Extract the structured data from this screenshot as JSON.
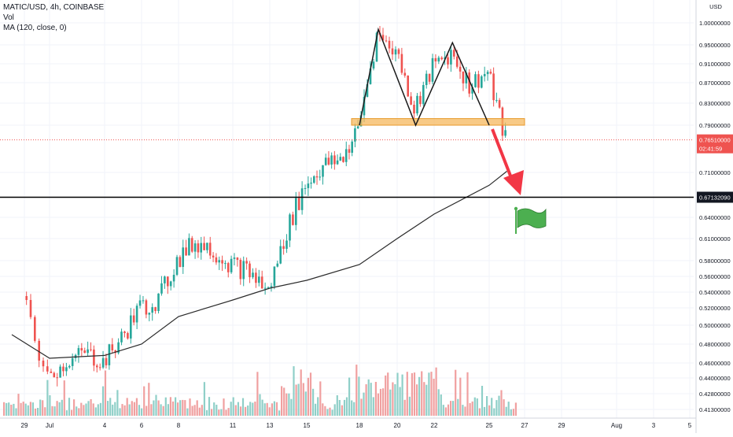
{
  "legend": {
    "symbol_line": "MATIC/USD, 4h, COINBASE",
    "volume_label": "Vol",
    "ma_label": "MA (120, close, 0)"
  },
  "price_axis": {
    "currency": "USD",
    "ticks": [
      "1.00000000",
      "0.95000000",
      "0.91000000",
      "0.87000000",
      "0.83000000",
      "0.79000000",
      "0.71000000",
      "0.64000000",
      "0.61000000",
      "0.58000000",
      "0.56000000",
      "0.54000000",
      "0.52000000",
      "0.50000000",
      "0.48000000",
      "0.46000000",
      "0.44000000",
      "0.42800000",
      "0.41300000"
    ]
  },
  "time_axis": {
    "ticks": [
      "29",
      "Jul",
      "4",
      "6",
      "8",
      "11",
      "13",
      "15",
      "18",
      "20",
      "22",
      "25",
      "27",
      "29",
      "Aug",
      "3",
      "5"
    ]
  },
  "current_price": {
    "label": "0.76510000",
    "countdown": "02:41:59",
    "value": 0.7651
  },
  "support_line": {
    "label": "0.67132090",
    "value": 0.6713209
  },
  "colors": {
    "up": "#26a69a",
    "down": "#ef5350",
    "vol_up": "#8fcfc8",
    "vol_down": "#f0a0a0",
    "ma": "#2b2b2b",
    "zone": "#f6b85e",
    "arrow": "#f23645",
    "flag": "#4caf50",
    "axis_text": "#131722",
    "grid": "#f0f3fa"
  },
  "chart_data": {
    "type": "candlestick",
    "symbol": "MATIC/USD",
    "interval": "4h",
    "exchange": "COINBASE",
    "y_axis": {
      "scale": "log",
      "range": [
        0.41,
        1.02
      ],
      "currency": "USD"
    },
    "grid": true,
    "series": [
      {
        "name": "MATIC/USD",
        "kind": "candles",
        "close_path": [
          {
            "date": "Jun 29",
            "value": 0.535
          },
          {
            "date": "Jul 1",
            "value": 0.44
          },
          {
            "date": "Jul 2",
            "value": 0.46
          },
          {
            "date": "Jul 3",
            "value": 0.47
          },
          {
            "date": "Jul 4",
            "value": 0.46
          },
          {
            "date": "Jul 5",
            "value": 0.485
          },
          {
            "date": "Jul 6",
            "value": 0.52
          },
          {
            "date": "Jul 7",
            "value": 0.53
          },
          {
            "date": "Jul 8",
            "value": 0.58
          },
          {
            "date": "Jul 9",
            "value": 0.605
          },
          {
            "date": "Jul 10",
            "value": 0.595
          },
          {
            "date": "Jul 11",
            "value": 0.575
          },
          {
            "date": "Jul 12",
            "value": 0.565
          },
          {
            "date": "Jul 13",
            "value": 0.54
          },
          {
            "date": "Jul 14",
            "value": 0.62
          },
          {
            "date": "Jul 15",
            "value": 0.69
          },
          {
            "date": "Jul 16",
            "value": 0.72
          },
          {
            "date": "Jul 17",
            "value": 0.73
          },
          {
            "date": "Jul 18",
            "value": 0.78
          },
          {
            "date": "Jul 19",
            "value": 0.97
          },
          {
            "date": "Jul 20",
            "value": 0.94
          },
          {
            "date": "Jul 21",
            "value": 0.82
          },
          {
            "date": "Jul 22",
            "value": 0.9
          },
          {
            "date": "Jul 23",
            "value": 0.935
          },
          {
            "date": "Jul 24",
            "value": 0.865
          },
          {
            "date": "Jul 25",
            "value": 0.89
          },
          {
            "date": "Jul 26",
            "value": 0.7651
          }
        ]
      },
      {
        "name": "MA (120, close, 0)",
        "kind": "line",
        "points": [
          {
            "date": "Jun 28",
            "value": 0.49
          },
          {
            "date": "Jul 1",
            "value": 0.465
          },
          {
            "date": "Jul 4",
            "value": 0.468
          },
          {
            "date": "Jul 6",
            "value": 0.48
          },
          {
            "date": "Jul 8",
            "value": 0.51
          },
          {
            "date": "Jul 11",
            "value": 0.53
          },
          {
            "date": "Jul 13",
            "value": 0.545
          },
          {
            "date": "Jul 15",
            "value": 0.555
          },
          {
            "date": "Jul 18",
            "value": 0.575
          },
          {
            "date": "Jul 20",
            "value": 0.61
          },
          {
            "date": "Jul 22",
            "value": 0.645
          },
          {
            "date": "Jul 25",
            "value": 0.69
          },
          {
            "date": "Jul 26",
            "value": 0.712
          }
        ]
      },
      {
        "name": "Vol",
        "kind": "volume",
        "note": "relative volume bars under candles"
      }
    ],
    "annotations": {
      "resistance_zone": [
        0.79,
        0.802
      ],
      "horizontal_line": 0.6713209,
      "double_top_path": [
        {
          "date": "Jul 18",
          "value": 0.79
        },
        {
          "date": "Jul 19",
          "value": 0.985
        },
        {
          "date": "Jul 21",
          "value": 0.79
        },
        {
          "date": "Jul 23",
          "value": 0.955
        },
        {
          "date": "Jul 25",
          "value": 0.79
        }
      ]
    }
  }
}
